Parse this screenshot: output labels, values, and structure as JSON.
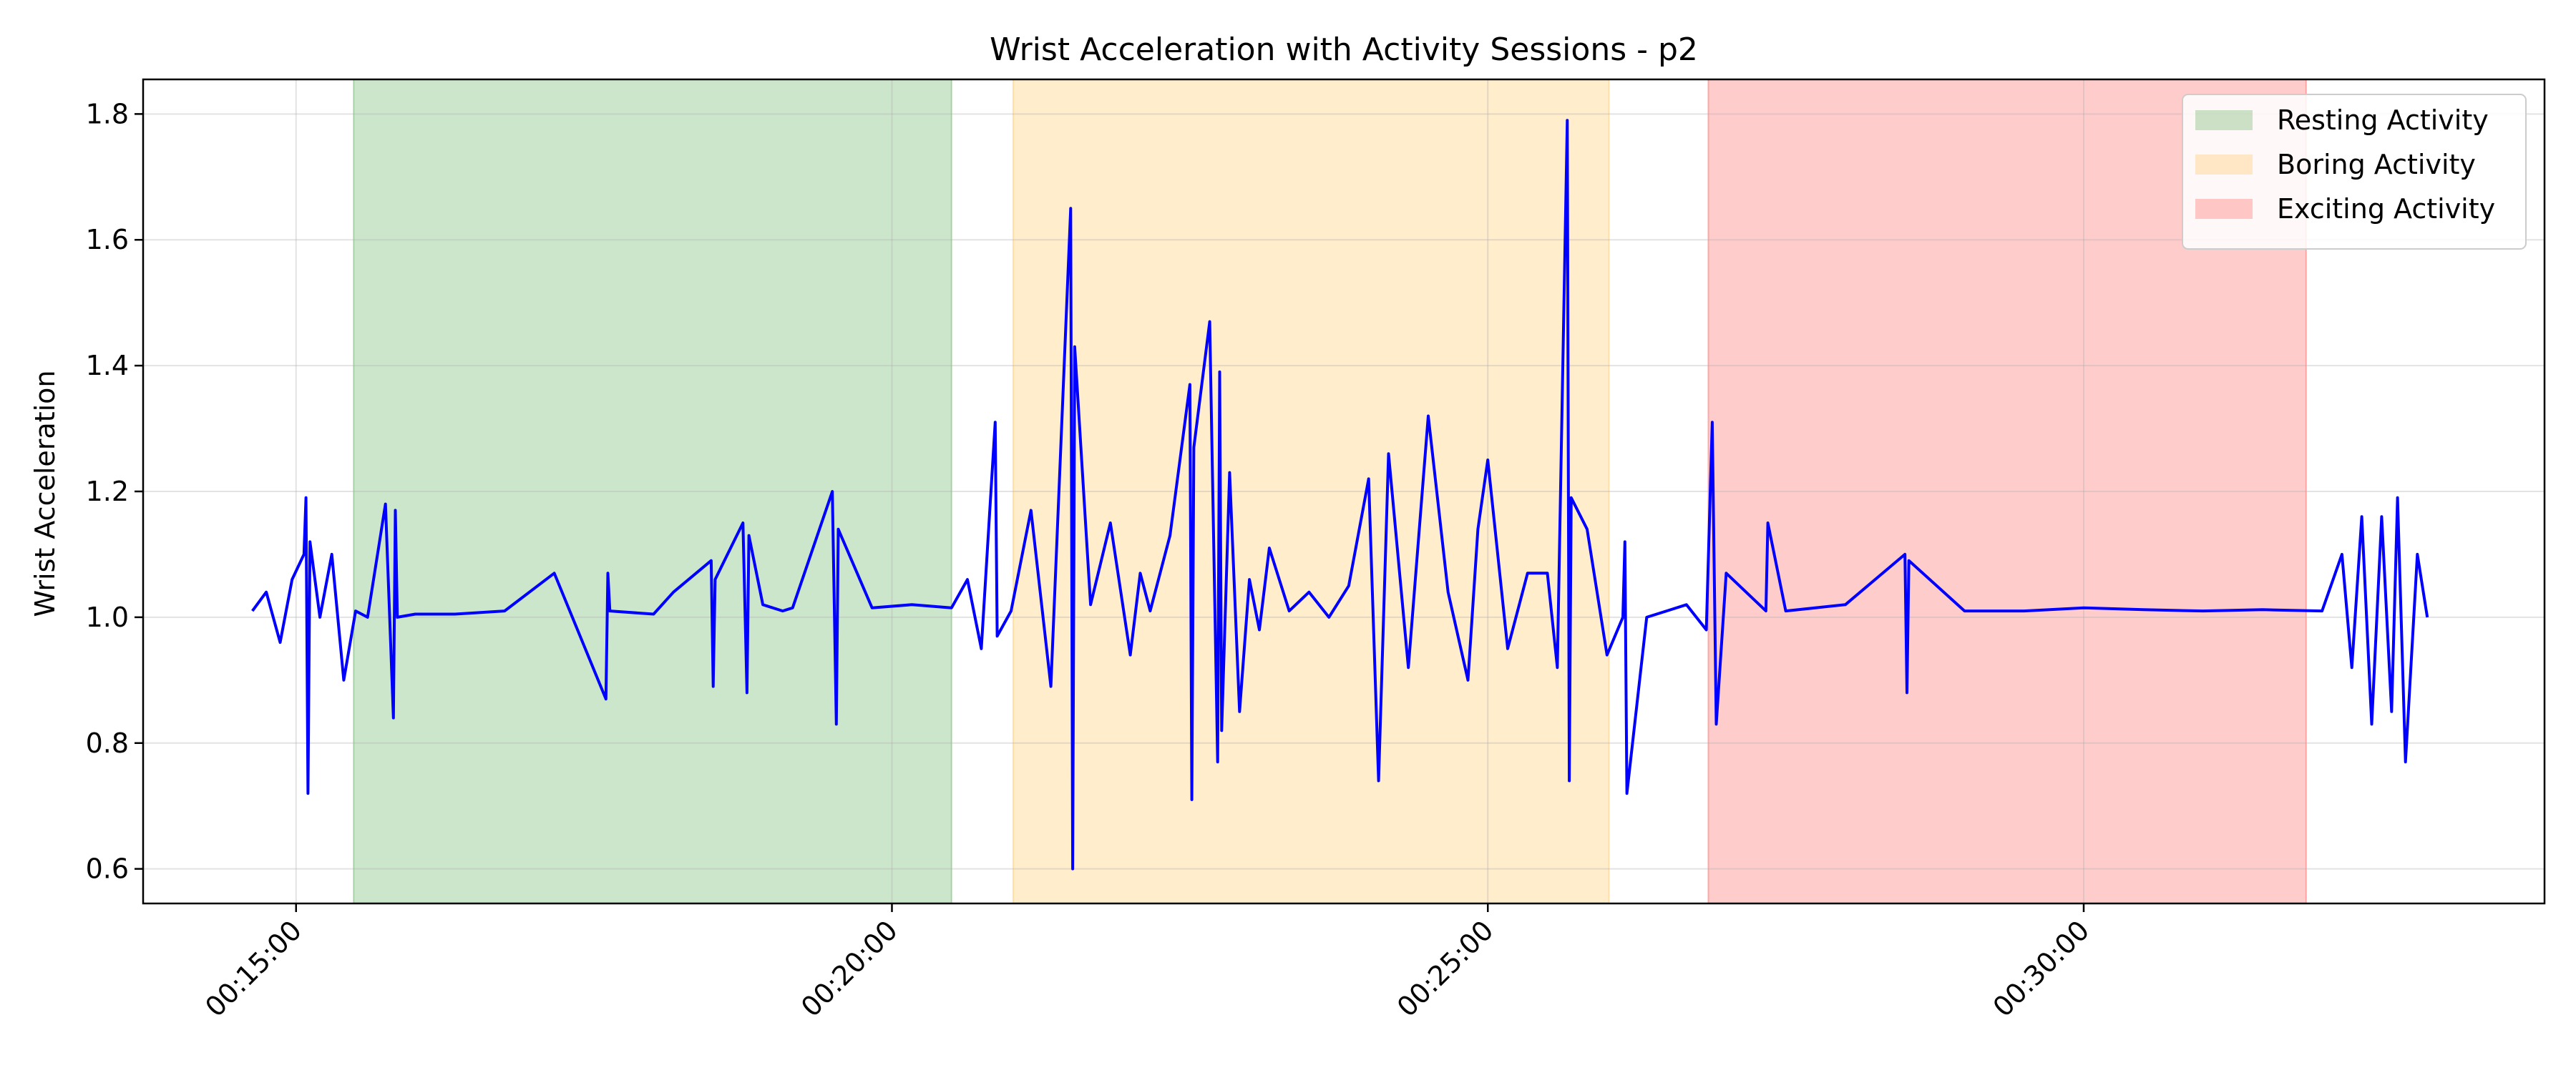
{
  "chart_data": {
    "type": "line",
    "title": "Wrist Acceleration with Activity Sessions - p2",
    "xlabel": "",
    "ylabel": "Wrist Acceleration",
    "x_unit": "elapsed time (HH:MM:SS)",
    "xlim": [
      "00:13:43",
      "00:33:52"
    ],
    "ylim": [
      0.545,
      1.855
    ],
    "x_ticks": [
      "00:15:00",
      "00:20:00",
      "00:25:00",
      "00:30:00"
    ],
    "y_ticks": [
      "0.6",
      "0.8",
      "1.0",
      "1.2",
      "1.4",
      "1.6",
      "1.8"
    ],
    "grid": true,
    "legend_position": "top-right",
    "line_color": "#0000ff",
    "sessions": [
      {
        "label": "Resting Activity",
        "start": "00:15:29",
        "end": "00:20:30",
        "color": "#008000",
        "alpha": 0.2
      },
      {
        "label": "Boring Activity",
        "start": "00:21:01",
        "end": "00:26:01",
        "color": "#ffa500",
        "alpha": 0.2
      },
      {
        "label": "Exciting Activity",
        "start": "00:26:51",
        "end": "00:31:52",
        "color": "#ff0000",
        "alpha": 0.2
      }
    ],
    "series": [
      {
        "x": [
          "00:14:38",
          "00:14:45",
          "00:14:52",
          "00:14:58",
          "00:15:04",
          "00:15:05",
          "00:15:06",
          "00:15:07",
          "00:15:12",
          "00:15:18",
          "00:15:24",
          "00:15:30",
          "00:15:36",
          "00:15:45",
          "00:15:49",
          "00:15:50",
          "00:15:51",
          "00:16:00",
          "00:16:20",
          "00:16:45",
          "00:17:10",
          "00:17:36",
          "00:17:37",
          "00:17:38",
          "00:18:00",
          "00:18:10",
          "00:18:29",
          "00:18:30",
          "00:18:31",
          "00:18:45",
          "00:18:47",
          "00:18:48",
          "00:18:55",
          "00:19:05",
          "00:19:10",
          "00:19:30",
          "00:19:32",
          "00:19:33",
          "00:19:50",
          "00:20:10",
          "00:20:30",
          "00:20:38",
          "00:20:45",
          "00:20:52",
          "00:20:53",
          "00:21:00",
          "00:21:10",
          "00:21:20",
          "00:21:30",
          "00:21:31",
          "00:21:32",
          "00:21:40",
          "00:21:50",
          "00:22:00",
          "00:22:05",
          "00:22:10",
          "00:22:20",
          "00:22:30",
          "00:22:31",
          "00:22:32",
          "00:22:40",
          "00:22:44",
          "00:22:45",
          "00:22:46",
          "00:22:50",
          "00:22:55",
          "00:23:00",
          "00:23:05",
          "00:23:10",
          "00:23:20",
          "00:23:30",
          "00:23:40",
          "00:23:50",
          "00:24:00",
          "00:24:05",
          "00:24:10",
          "00:24:20",
          "00:24:30",
          "00:24:40",
          "00:24:50",
          "00:24:55",
          "00:25:00",
          "00:25:10",
          "00:25:20",
          "00:25:30",
          "00:25:35",
          "00:25:40",
          "00:25:41",
          "00:25:42",
          "00:25:50",
          "00:26:00",
          "00:26:08",
          "00:26:09",
          "00:26:10",
          "00:26:20",
          "00:26:30",
          "00:26:40",
          "00:26:50",
          "00:26:53",
          "00:26:55",
          "00:27:00",
          "00:27:20",
          "00:27:21",
          "00:27:30",
          "00:28:00",
          "00:28:30",
          "00:28:31",
          "00:28:32",
          "00:29:00",
          "00:29:30",
          "00:30:00",
          "00:30:30",
          "00:31:00",
          "00:31:30",
          "00:32:00",
          "00:32:10",
          "00:32:15",
          "00:32:20",
          "00:32:25",
          "00:32:30",
          "00:32:35",
          "00:32:38",
          "00:32:42",
          "00:32:48",
          "00:32:53"
        ],
        "y": [
          1.01,
          1.04,
          0.96,
          1.06,
          1.1,
          1.19,
          0.72,
          1.12,
          1.0,
          1.1,
          0.9,
          1.01,
          1.0,
          1.18,
          0.84,
          1.17,
          1.0,
          1.005,
          1.005,
          1.01,
          1.07,
          0.87,
          1.07,
          1.01,
          1.005,
          1.04,
          1.09,
          0.89,
          1.06,
          1.15,
          0.88,
          1.13,
          1.02,
          1.01,
          1.015,
          1.2,
          0.83,
          1.14,
          1.015,
          1.02,
          1.015,
          1.06,
          0.95,
          1.31,
          0.97,
          1.01,
          1.17,
          0.89,
          1.65,
          0.6,
          1.43,
          1.02,
          1.15,
          0.94,
          1.07,
          1.01,
          1.13,
          1.37,
          0.71,
          1.27,
          1.47,
          0.77,
          1.39,
          0.82,
          1.23,
          0.85,
          1.06,
          0.98,
          1.11,
          1.01,
          1.04,
          1.0,
          1.05,
          1.22,
          0.74,
          1.26,
          0.92,
          1.32,
          1.04,
          0.9,
          1.14,
          1.25,
          0.95,
          1.07,
          1.07,
          0.92,
          1.79,
          0.74,
          1.19,
          1.14,
          0.94,
          1.0,
          1.12,
          0.72,
          1.0,
          1.01,
          1.02,
          0.98,
          1.31,
          0.83,
          1.07,
          1.01,
          1.15,
          1.01,
          1.02,
          1.1,
          0.88,
          1.09,
          1.01,
          1.01,
          1.015,
          1.012,
          1.01,
          1.012,
          1.01,
          1.1,
          0.92,
          1.16,
          0.83,
          1.16,
          0.85,
          1.19,
          0.77,
          1.1,
          1.0
        ]
      }
    ]
  }
}
